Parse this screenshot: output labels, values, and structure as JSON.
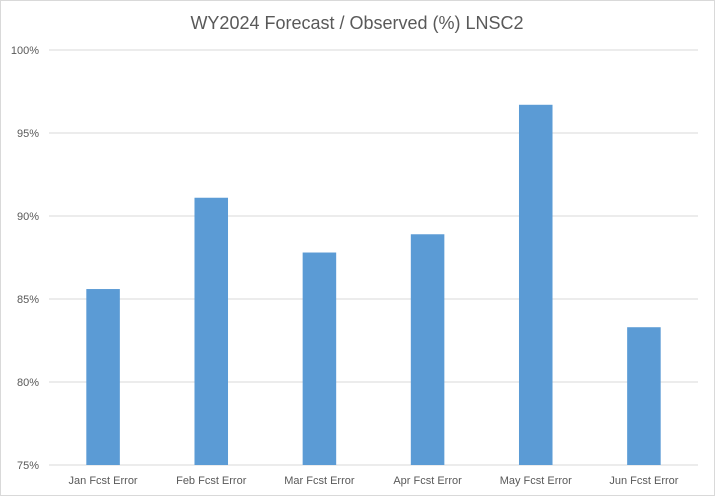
{
  "chart_data": {
    "type": "bar",
    "title": "WY2024 Forecast / Observed (%) LNSC2",
    "xlabel": "",
    "ylabel": "",
    "categories": [
      "Jan Fcst Error",
      "Feb Fcst Error",
      "Mar Fcst Error",
      "Apr Fcst Error",
      "May Fcst Error",
      "Jun Fcst Error"
    ],
    "values": [
      85.6,
      91.1,
      87.8,
      88.9,
      96.7,
      83.3
    ],
    "ylim": [
      75,
      100
    ],
    "yticks": [
      75,
      80,
      85,
      90,
      95,
      100
    ],
    "ytick_labels": [
      "75%",
      "80%",
      "85%",
      "90%",
      "95%",
      "100%"
    ],
    "grid": true,
    "legend": "none",
    "bar_color": "#5b9bd5",
    "grid_color": "#d9d9d9"
  }
}
